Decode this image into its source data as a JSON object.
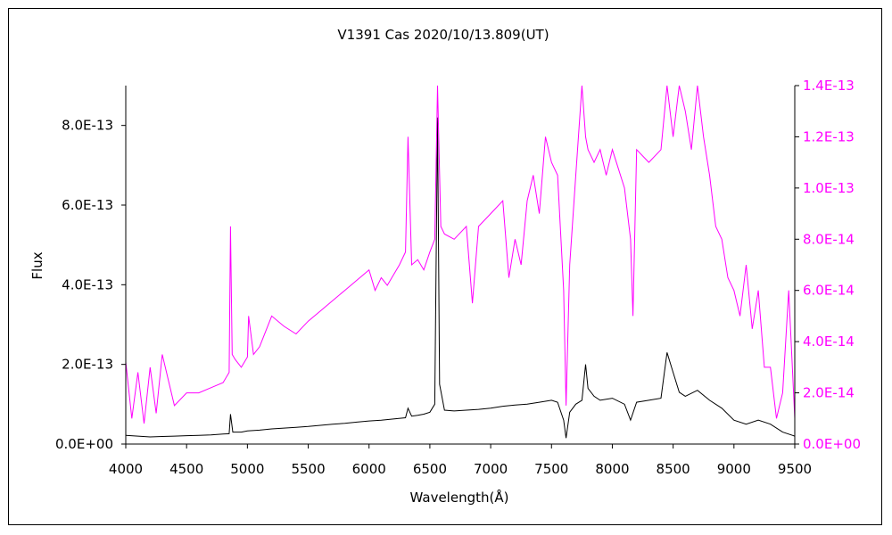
{
  "chart_data": {
    "type": "line",
    "title": "V1391 Cas   2020/10/13.809(UT)",
    "xlabel": "Wavelength(Å)",
    "ylabel": "Flux",
    "xlim": [
      4000,
      9500
    ],
    "ylim_left": [
      0,
      9e-13
    ],
    "ylim_right": [
      0,
      1.4e-13
    ],
    "x_ticks": [
      4000,
      4500,
      5000,
      5500,
      6000,
      6500,
      7000,
      7500,
      8000,
      8500,
      9000,
      9500
    ],
    "x_tick_labels": [
      "4000",
      "4500",
      "5000",
      "5500",
      "6000",
      "6500",
      "7000",
      "7500",
      "8000",
      "8500",
      "9000",
      "9500"
    ],
    "y_left_ticks": [
      0,
      2e-13,
      4e-13,
      6e-13,
      8e-13
    ],
    "y_left_tick_labels": [
      "0.0E+00",
      "2.0E-13",
      "4.0E-13",
      "6.0E-13",
      "8.0E-13"
    ],
    "y_right_ticks": [
      0,
      2e-14,
      4e-14,
      6e-14,
      8e-14,
      1e-13,
      1.2e-13,
      1.4e-13
    ],
    "y_right_tick_labels": [
      "0.0E+00",
      "2.0E-14",
      "4.0E-14",
      "6.0E-14",
      "8.0E-14",
      "1.0E-13",
      "1.2E-13",
      "1.4E-13"
    ],
    "grid": false,
    "legend": "none",
    "series": [
      {
        "axis": "left",
        "color": "#000000",
        "x": [
          4000,
          4100,
          4200,
          4300,
          4400,
          4500,
          4600,
          4700,
          4800,
          4850,
          4861,
          4880,
          4950,
          5000,
          5100,
          5200,
          5300,
          5400,
          5500,
          5600,
          5700,
          5800,
          5900,
          6000,
          6100,
          6200,
          6300,
          6320,
          6350,
          6400,
          6450,
          6500,
          6540,
          6563,
          6580,
          6620,
          6700,
          6800,
          6900,
          7000,
          7100,
          7200,
          7300,
          7400,
          7500,
          7550,
          7600,
          7620,
          7650,
          7700,
          7750,
          7780,
          7800,
          7850,
          7900,
          8000,
          8100,
          8150,
          8200,
          8300,
          8400,
          8450,
          8500,
          8550,
          8600,
          8700,
          8800,
          8900,
          9000,
          9100,
          9200,
          9300,
          9400,
          9500
        ],
        "y": [
          2.2e-14,
          2e-14,
          1.8e-14,
          1.9e-14,
          2e-14,
          2.1e-14,
          2.2e-14,
          2.3e-14,
          2.5e-14,
          2.6e-14,
          7.5e-14,
          3e-14,
          3e-14,
          3.3e-14,
          3.5e-14,
          3.8e-14,
          4e-14,
          4.2e-14,
          4.4e-14,
          4.7e-14,
          5e-14,
          5.2e-14,
          5.5e-14,
          5.8e-14,
          6e-14,
          6.3e-14,
          6.6e-14,
          9e-14,
          7e-14,
          7.2e-14,
          7.5e-14,
          8e-14,
          1e-13,
          8.2e-13,
          1.5e-13,
          8.5e-14,
          8.3e-14,
          8.5e-14,
          8.7e-14,
          9e-14,
          9.5e-14,
          9.8e-14,
          1e-13,
          1.05e-13,
          1.1e-13,
          1.05e-13,
          6e-14,
          1.5e-14,
          8e-14,
          1e-13,
          1.1e-13,
          2e-13,
          1.4e-13,
          1.2e-13,
          1.1e-13,
          1.15e-13,
          1e-13,
          6e-14,
          1.05e-13,
          1.1e-13,
          1.15e-13,
          2.3e-13,
          1.8e-13,
          1.3e-13,
          1.2e-13,
          1.35e-13,
          1.1e-13,
          9e-14,
          6e-14,
          5e-14,
          6e-14,
          5e-14,
          3e-14,
          2e-14
        ]
      },
      {
        "axis": "right",
        "color": "#ff00ff",
        "x": [
          4000,
          4050,
          4100,
          4150,
          4200,
          4250,
          4300,
          4400,
          4500,
          4600,
          4700,
          4800,
          4850,
          4861,
          4875,
          4900,
          4950,
          5000,
          5010,
          5050,
          5100,
          5150,
          5200,
          5300,
          5400,
          5500,
          5600,
          5700,
          5800,
          5900,
          6000,
          6050,
          6100,
          6150,
          6200,
          6250,
          6300,
          6320,
          6350,
          6400,
          6450,
          6500,
          6540,
          6563,
          6590,
          6620,
          6700,
          6800,
          6850,
          6900,
          7000,
          7100,
          7150,
          7200,
          7250,
          7300,
          7350,
          7400,
          7450,
          7500,
          7550,
          7600,
          7620,
          7650,
          7700,
          7750,
          7780,
          7800,
          7850,
          7900,
          7950,
          8000,
          8100,
          8150,
          8170,
          8200,
          8300,
          8400,
          8450,
          8500,
          8550,
          8600,
          8650,
          8700,
          8750,
          8800,
          8850,
          8900,
          8950,
          9000,
          9050,
          9100,
          9150,
          9200,
          9250,
          9300,
          9350,
          9400,
          9450,
          9500
        ],
        "y": [
          3.2e-14,
          1e-14,
          2.8e-14,
          8e-15,
          3e-14,
          1.2e-14,
          3.5e-14,
          1.5e-14,
          2e-14,
          2e-14,
          2.2e-14,
          2.4e-14,
          2.8e-14,
          8.5e-14,
          3.5e-14,
          3.3e-14,
          3e-14,
          3.4e-14,
          5e-14,
          3.5e-14,
          3.8e-14,
          4.4e-14,
          5e-14,
          4.6e-14,
          4.3e-14,
          4.8e-14,
          5.2e-14,
          5.6e-14,
          6e-14,
          6.4e-14,
          6.8e-14,
          6e-14,
          6.5e-14,
          6.2e-14,
          6.6e-14,
          7e-14,
          7.5e-14,
          1.2e-13,
          7e-14,
          7.2e-14,
          6.8e-14,
          7.5e-14,
          8e-14,
          1.4e-13,
          8.5e-14,
          8.2e-14,
          8e-14,
          8.5e-14,
          5.5e-14,
          8.5e-14,
          9e-14,
          9.5e-14,
          6.5e-14,
          8e-14,
          7e-14,
          9.5e-14,
          1.05e-13,
          9e-14,
          1.2e-13,
          1.1e-13,
          1.05e-13,
          6e-14,
          1.5e-14,
          7e-14,
          1.05e-13,
          1.4e-13,
          1.2e-13,
          1.15e-13,
          1.1e-13,
          1.15e-13,
          1.05e-13,
          1.15e-13,
          1e-13,
          8e-14,
          5e-14,
          1.15e-13,
          1.1e-13,
          1.15e-13,
          1.4e-13,
          1.2e-13,
          1.4e-13,
          1.3e-13,
          1.15e-13,
          1.4e-13,
          1.2e-13,
          1.05e-13,
          8.5e-14,
          8e-14,
          6.5e-14,
          6e-14,
          5e-14,
          7e-14,
          4.5e-14,
          6e-14,
          3e-14,
          3e-14,
          1e-14,
          2e-14,
          6e-14,
          1e-14
        ]
      }
    ]
  }
}
